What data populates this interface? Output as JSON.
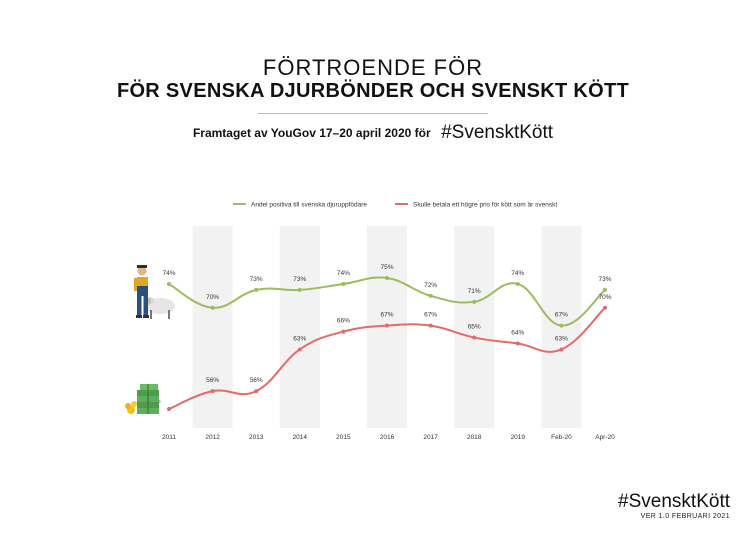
{
  "header": {
    "title_line1": "FÖRTROENDE FÖR",
    "title_line2": "FÖR SVENSKA DJURBÖNDER OCH SVENSKT KÖTT",
    "subtitle": "Framtaget av YouGov 17–20 april 2020 för",
    "hashtag": "#SvensktKött"
  },
  "footer": {
    "hashtag": "#SvensktKött",
    "version": "VER 1.0 FEBRUARI 2021"
  },
  "chart_data": {
    "type": "line",
    "categories": [
      "2011",
      "2012",
      "2013",
      "2014",
      "2015",
      "2016",
      "2017",
      "2018",
      "2019",
      "Feb-20",
      "Apr-20"
    ],
    "series": [
      {
        "name": "Andel positiva till svenska djuruppfödare",
        "color": "#9ebc5b",
        "values": [
          74,
          70,
          73,
          73,
          74,
          75,
          72,
          71,
          74,
          67,
          73
        ]
      },
      {
        "name": "Skulle betala ett högre pris för kött som är svenskt",
        "color": "#e26b6b",
        "values": [
          53,
          56,
          56,
          63,
          66,
          67,
          67,
          65,
          64,
          63,
          70
        ]
      }
    ],
    "shaded_columns": [
      "2012",
      "2014",
      "2016",
      "2018",
      "Feb-20"
    ],
    "legend_position": "top",
    "value_format": "percent",
    "icons": [
      "farmer-with-sheep-icon",
      "money-stack-icon"
    ]
  }
}
